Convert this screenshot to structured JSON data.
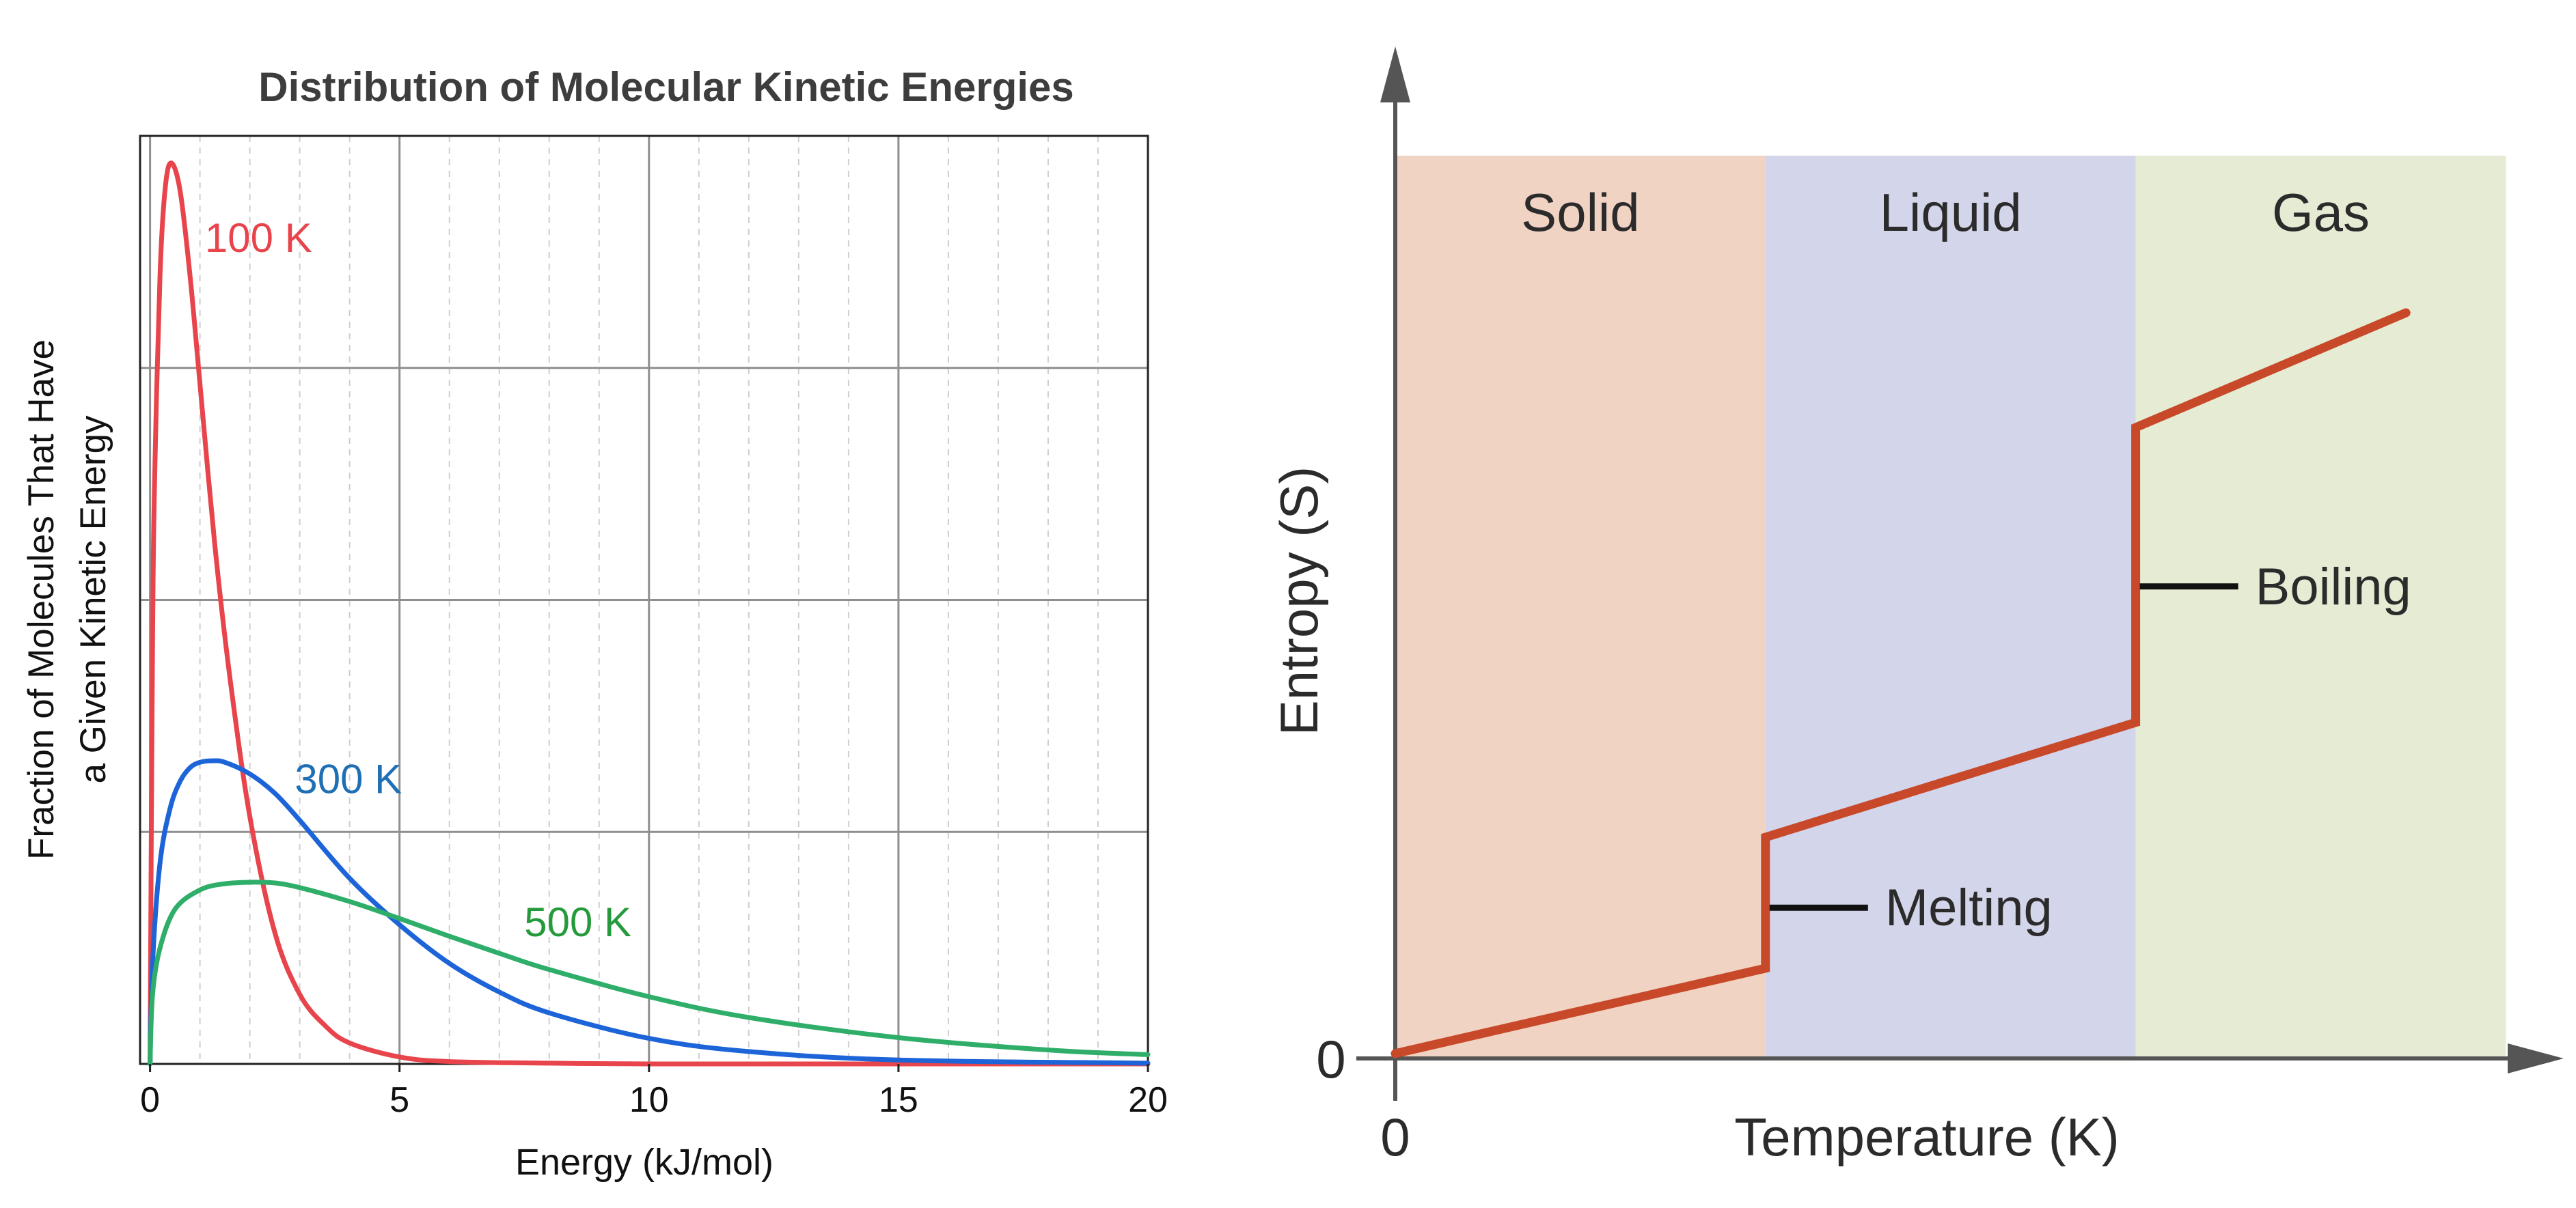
{
  "colors": {
    "red": "#e8444b",
    "blue": "#1d64d8",
    "green": "#2fae6a",
    "label_red": "#e8444b",
    "label_blue": "#1f6fb5",
    "label_green": "#259a3c",
    "solid_bg": "#f0d3c3",
    "liquid_bg": "#d3d5ea",
    "gas_bg": "#e5ecd3",
    "entropy_line": "#c8492a",
    "axis_gray": "#555555"
  },
  "chart_data": [
    {
      "type": "line",
      "title": "Distribution of Molecular Kinetic Energies",
      "xlabel": "Energy (kJ/mol)",
      "ylabel": [
        "Fraction of Molecules That Have",
        "a Given Kinetic Energy"
      ],
      "xlim": [
        -0.2,
        20
      ],
      "x_ticks": [
        0,
        5,
        10,
        15,
        20
      ],
      "x_tick_labels": [
        "0",
        "5",
        "10",
        "15",
        "20"
      ],
      "ylim": [
        0,
        1.2
      ],
      "grid": true,
      "series": [
        {
          "name": "100 K",
          "color_key": "red",
          "x": [
            0,
            0.05,
            0.1,
            0.2,
            0.3,
            0.42,
            0.6,
            0.8,
            1.0,
            1.3,
            1.6,
            2.0,
            2.5,
            3.0,
            3.5,
            4.0,
            5.0,
            6.0,
            8.0,
            10.0,
            15.0,
            20.0
          ],
          "y": [
            0,
            0.55,
            0.78,
            1.02,
            1.13,
            1.165,
            1.13,
            1.02,
            0.88,
            0.67,
            0.5,
            0.32,
            0.17,
            0.09,
            0.05,
            0.027,
            0.009,
            0.003,
            0.001,
            0.0,
            0.0,
            0.0
          ]
        },
        {
          "name": "300 K",
          "color_key": "blue",
          "x": [
            0,
            0.05,
            0.2,
            0.4,
            0.6,
            0.8,
            1.0,
            1.25,
            1.5,
            2.0,
            2.5,
            3.0,
            4.0,
            5.0,
            6.0,
            7.0,
            8.0,
            10.0,
            12.0,
            15.0,
            20.0
          ],
          "y": [
            0,
            0.13,
            0.26,
            0.33,
            0.365,
            0.383,
            0.39,
            0.392,
            0.39,
            0.375,
            0.35,
            0.315,
            0.24,
            0.18,
            0.13,
            0.093,
            0.066,
            0.033,
            0.016,
            0.005,
            0.001
          ]
        },
        {
          "name": "500 K",
          "color_key": "green",
          "x": [
            0,
            0.05,
            0.2,
            0.5,
            1.0,
            1.5,
            2.08,
            2.5,
            3.0,
            4.0,
            5.0,
            6.0,
            7.0,
            8.0,
            10.0,
            12.0,
            15.0,
            18.0,
            20.0
          ],
          "y": [
            0,
            0.09,
            0.15,
            0.2,
            0.225,
            0.233,
            0.235,
            0.234,
            0.228,
            0.21,
            0.188,
            0.165,
            0.143,
            0.122,
            0.087,
            0.06,
            0.034,
            0.018,
            0.012
          ]
        }
      ],
      "annotations": [
        {
          "text": "100 K",
          "x": 1.1,
          "y": 1.05,
          "color_key": "label_red"
        },
        {
          "text": "300 K",
          "x": 2.9,
          "y": 0.35,
          "color_key": "label_blue"
        },
        {
          "text": "500 K",
          "x": 7.5,
          "y": 0.165,
          "color_key": "label_green"
        }
      ]
    },
    {
      "type": "line",
      "title": "",
      "xlabel": "Temperature (K)",
      "ylabel": "Entropy (S)",
      "xlim": [
        0,
        3.3
      ],
      "ylim": [
        0,
        5.5
      ],
      "x_tick_labels": [
        "0"
      ],
      "y_tick_labels": [
        "0"
      ],
      "grid": false,
      "phases": [
        {
          "label": "Solid",
          "x0": 0,
          "x1": 1.0,
          "color_key": "solid_bg"
        },
        {
          "label": "Liquid",
          "x0": 1.0,
          "x1": 2.0,
          "color_key": "liquid_bg"
        },
        {
          "label": "Gas",
          "x0": 2.0,
          "x1": 3.0,
          "color_key": "gas_bg"
        }
      ],
      "series": [
        {
          "name": "",
          "color_key": "entropy_line",
          "x": [
            0,
            1.0,
            1.0,
            2.0,
            2.0,
            2.73
          ],
          "y": [
            0.03,
            0.55,
            1.35,
            2.05,
            3.85,
            4.55
          ]
        }
      ],
      "annotations": [
        {
          "text": "Melting",
          "x": 1.0,
          "y": 0.92
        },
        {
          "text": "Boiling",
          "x": 2.0,
          "y": 2.88
        }
      ]
    }
  ]
}
